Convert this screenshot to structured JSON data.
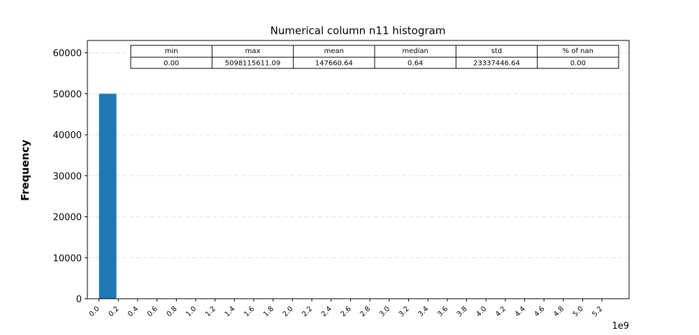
{
  "chart_data": {
    "type": "bar",
    "title": "Numerical column n11 histogram",
    "xlabel": "",
    "ylabel": "Frequency",
    "x_offset_label": "1e9",
    "x_range": [
      -0.12,
      5.48
    ],
    "ylim": [
      0,
      63000
    ],
    "y_ticks": [
      0,
      10000,
      20000,
      30000,
      40000,
      50000,
      60000
    ],
    "x_ticks": [
      "0.0",
      "0.2",
      "0.4",
      "0.6",
      "0.8",
      "1.0",
      "1.2",
      "1.4",
      "1.6",
      "1.8",
      "2.0",
      "2.2",
      "2.4",
      "2.6",
      "2.8",
      "3.0",
      "3.2",
      "3.4",
      "3.6",
      "3.8",
      "4.0",
      "4.2",
      "4.4",
      "4.6",
      "4.8",
      "5.0",
      "5.2"
    ],
    "grid": "horizontal dashed",
    "bar_color": "#1f77b4",
    "bins": [
      {
        "start": 0.0,
        "end": 0.18,
        "count": 50000
      }
    ],
    "stats_table": {
      "headers": [
        "min",
        "max",
        "mean",
        "median",
        "std",
        "% of nan"
      ],
      "values": [
        "0.00",
        "5098115611.09",
        "147660.64",
        "0.64",
        "23337446.64",
        "0.00"
      ]
    }
  }
}
